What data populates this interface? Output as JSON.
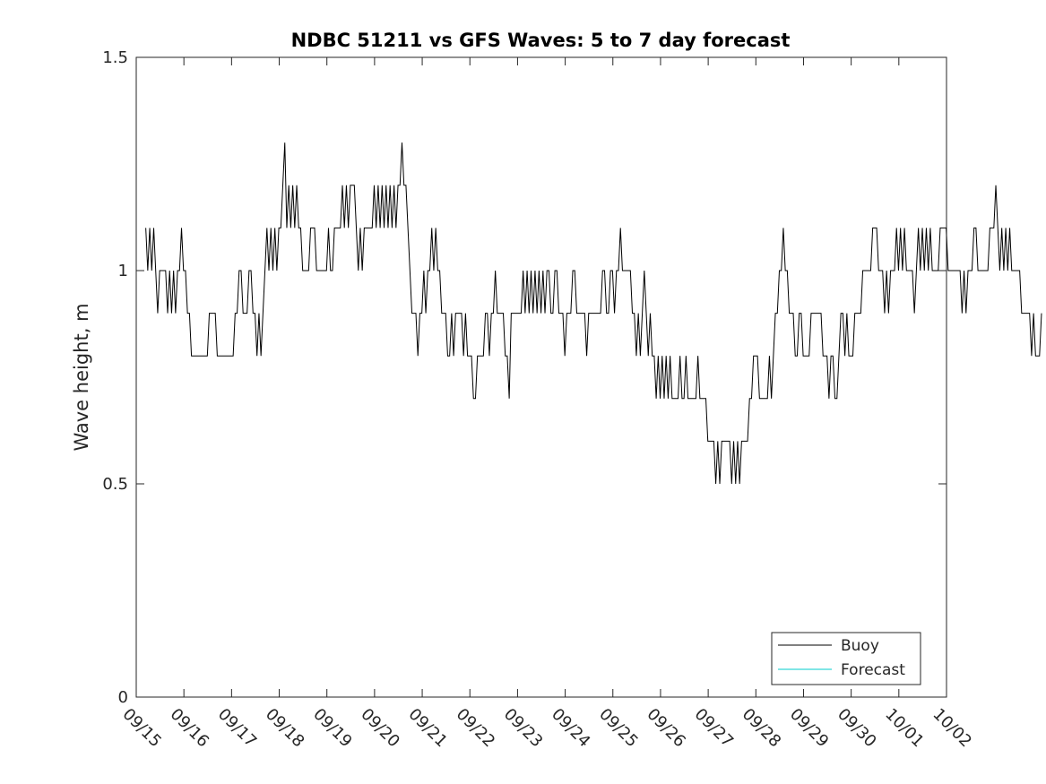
{
  "chart_data": {
    "type": "line",
    "title": "NDBC 51211 vs GFS Waves: 5 to 7 day forecast",
    "xlabel": "",
    "ylabel": "Wave height, m",
    "xlim": [
      0,
      17
    ],
    "ylim": [
      0,
      1.5
    ],
    "x_ticks": [
      0,
      1,
      2,
      3,
      4,
      5,
      6,
      7,
      8,
      9,
      10,
      11,
      12,
      13,
      14,
      15,
      16,
      17
    ],
    "x_tick_labels": [
      "09/15",
      "09/16",
      "09/17",
      "09/18",
      "09/19",
      "09/20",
      "09/21",
      "09/22",
      "09/23",
      "09/24",
      "09/25",
      "09/26",
      "09/27",
      "09/28",
      "09/29",
      "09/30",
      "10/01",
      "10/02"
    ],
    "y_ticks": [
      0,
      0.5,
      1,
      1.5
    ],
    "y_tick_labels": [
      "0",
      "0.5",
      "1",
      "1.5"
    ],
    "legend": {
      "position": "bottom-right",
      "entries": [
        "Buoy",
        "Forecast"
      ]
    },
    "series": [
      {
        "name": "Buoy",
        "color": "#000000",
        "x_step_days": 0.04167,
        "values": [
          1.1,
          1.0,
          1.1,
          1.0,
          1.1,
          1.0,
          0.9,
          1.0,
          1.0,
          1.0,
          1.0,
          0.9,
          1.0,
          0.9,
          1.0,
          0.9,
          1.0,
          1.0,
          1.1,
          1.0,
          1.0,
          0.9,
          0.9,
          0.8,
          0.8,
          0.8,
          0.8,
          0.8,
          0.8,
          0.8,
          0.8,
          0.8,
          0.9,
          0.9,
          0.9,
          0.9,
          0.8,
          0.8,
          0.8,
          0.8,
          0.8,
          0.8,
          0.8,
          0.8,
          0.8,
          0.9,
          0.9,
          1.0,
          1.0,
          0.9,
          0.9,
          0.9,
          1.0,
          1.0,
          0.9,
          0.9,
          0.8,
          0.9,
          0.8,
          0.9,
          1.0,
          1.1,
          1.0,
          1.1,
          1.0,
          1.1,
          1.0,
          1.1,
          1.1,
          1.2,
          1.3,
          1.1,
          1.2,
          1.1,
          1.2,
          1.1,
          1.2,
          1.1,
          1.1,
          1.0,
          1.0,
          1.0,
          1.0,
          1.1,
          1.1,
          1.1,
          1.0,
          1.0,
          1.0,
          1.0,
          1.0,
          1.0,
          1.1,
          1.0,
          1.0,
          1.1,
          1.1,
          1.1,
          1.1,
          1.2,
          1.1,
          1.2,
          1.1,
          1.2,
          1.2,
          1.2,
          1.1,
          1.0,
          1.1,
          1.0,
          1.1,
          1.1,
          1.1,
          1.1,
          1.1,
          1.2,
          1.1,
          1.2,
          1.1,
          1.2,
          1.1,
          1.2,
          1.1,
          1.2,
          1.1,
          1.2,
          1.1,
          1.2,
          1.2,
          1.3,
          1.2,
          1.2,
          1.1,
          1.0,
          0.9,
          0.9,
          0.9,
          0.8,
          0.9,
          0.9,
          1.0,
          0.9,
          1.0,
          1.0,
          1.1,
          1.0,
          1.1,
          1.0,
          1.0,
          0.9,
          0.9,
          0.9,
          0.8,
          0.8,
          0.9,
          0.8,
          0.9,
          0.9,
          0.9,
          0.9,
          0.8,
          0.9,
          0.8,
          0.8,
          0.8,
          0.7,
          0.7,
          0.8,
          0.8,
          0.8,
          0.8,
          0.9,
          0.9,
          0.8,
          0.9,
          0.9,
          1.0,
          0.9,
          0.9,
          0.9,
          0.9,
          0.8,
          0.8,
          0.7,
          0.9,
          0.9,
          0.9,
          0.9,
          0.9,
          0.9,
          1.0,
          0.9,
          1.0,
          0.9,
          1.0,
          0.9,
          1.0,
          0.9,
          1.0,
          0.9,
          1.0,
          0.9,
          1.0,
          1.0,
          0.9,
          0.9,
          1.0,
          1.0,
          0.9,
          0.9,
          0.9,
          0.8,
          0.9,
          0.9,
          0.9,
          1.0,
          1.0,
          0.9,
          0.9,
          0.9,
          0.9,
          0.9,
          0.8,
          0.9,
          0.9,
          0.9,
          0.9,
          0.9,
          0.9,
          0.9,
          1.0,
          1.0,
          0.9,
          0.9,
          1.0,
          1.0,
          0.9,
          1.0,
          1.0,
          1.1,
          1.0,
          1.0,
          1.0,
          1.0,
          1.0,
          0.9,
          0.9,
          0.8,
          0.9,
          0.8,
          0.9,
          1.0,
          0.9,
          0.8,
          0.9,
          0.8,
          0.8,
          0.7,
          0.8,
          0.7,
          0.8,
          0.7,
          0.8,
          0.7,
          0.8,
          0.7,
          0.7,
          0.7,
          0.7,
          0.8,
          0.7,
          0.7,
          0.8,
          0.7,
          0.7,
          0.7,
          0.7,
          0.7,
          0.8,
          0.7,
          0.7,
          0.7,
          0.7,
          0.6,
          0.6,
          0.6,
          0.6,
          0.5,
          0.6,
          0.5,
          0.6,
          0.6,
          0.6,
          0.6,
          0.6,
          0.5,
          0.6,
          0.5,
          0.6,
          0.5,
          0.6,
          0.6,
          0.6,
          0.6,
          0.7,
          0.7,
          0.8,
          0.8,
          0.8,
          0.7,
          0.7,
          0.7,
          0.7,
          0.7,
          0.8,
          0.7,
          0.8,
          0.9,
          0.9,
          1.0,
          1.0,
          1.1,
          1.0,
          1.0,
          0.9,
          0.9,
          0.9,
          0.8,
          0.8,
          0.9,
          0.9,
          0.8,
          0.8,
          0.8,
          0.8,
          0.9,
          0.9,
          0.9,
          0.9,
          0.9,
          0.9,
          0.8,
          0.8,
          0.8,
          0.7,
          0.8,
          0.8,
          0.7,
          0.7,
          0.8,
          0.9,
          0.9,
          0.8,
          0.9,
          0.8,
          0.8,
          0.8,
          0.9,
          0.9,
          0.9,
          0.9,
          1.0,
          1.0,
          1.0,
          1.0,
          1.0,
          1.1,
          1.1,
          1.1,
          1.0,
          1.0,
          1.0,
          0.9,
          1.0,
          0.9,
          1.0,
          1.0,
          1.0,
          1.1,
          1.0,
          1.1,
          1.0,
          1.1,
          1.0,
          1.0,
          1.0,
          1.0,
          0.9,
          1.0,
          1.1,
          1.0,
          1.1,
          1.0,
          1.1,
          1.0,
          1.1,
          1.0,
          1.0,
          1.0,
          1.0,
          1.1,
          1.1,
          1.1,
          1.1,
          1.0,
          1.0,
          1.0,
          1.0,
          1.0,
          1.0,
          1.0,
          0.9,
          1.0,
          0.9,
          1.0,
          1.0,
          1.0,
          1.1,
          1.1,
          1.0,
          1.0,
          1.0,
          1.0,
          1.0,
          1.0,
          1.1,
          1.1,
          1.1,
          1.2,
          1.1,
          1.0,
          1.1,
          1.0,
          1.1,
          1.0,
          1.1,
          1.0,
          1.0,
          1.0,
          1.0,
          1.0,
          0.9,
          0.9,
          0.9,
          0.9,
          0.9,
          0.8,
          0.9,
          0.8,
          0.8,
          0.8,
          0.9
        ]
      },
      {
        "name": "Forecast",
        "color": "#00cccc",
        "x_step_days": 0.25,
        "values": []
      }
    ]
  }
}
